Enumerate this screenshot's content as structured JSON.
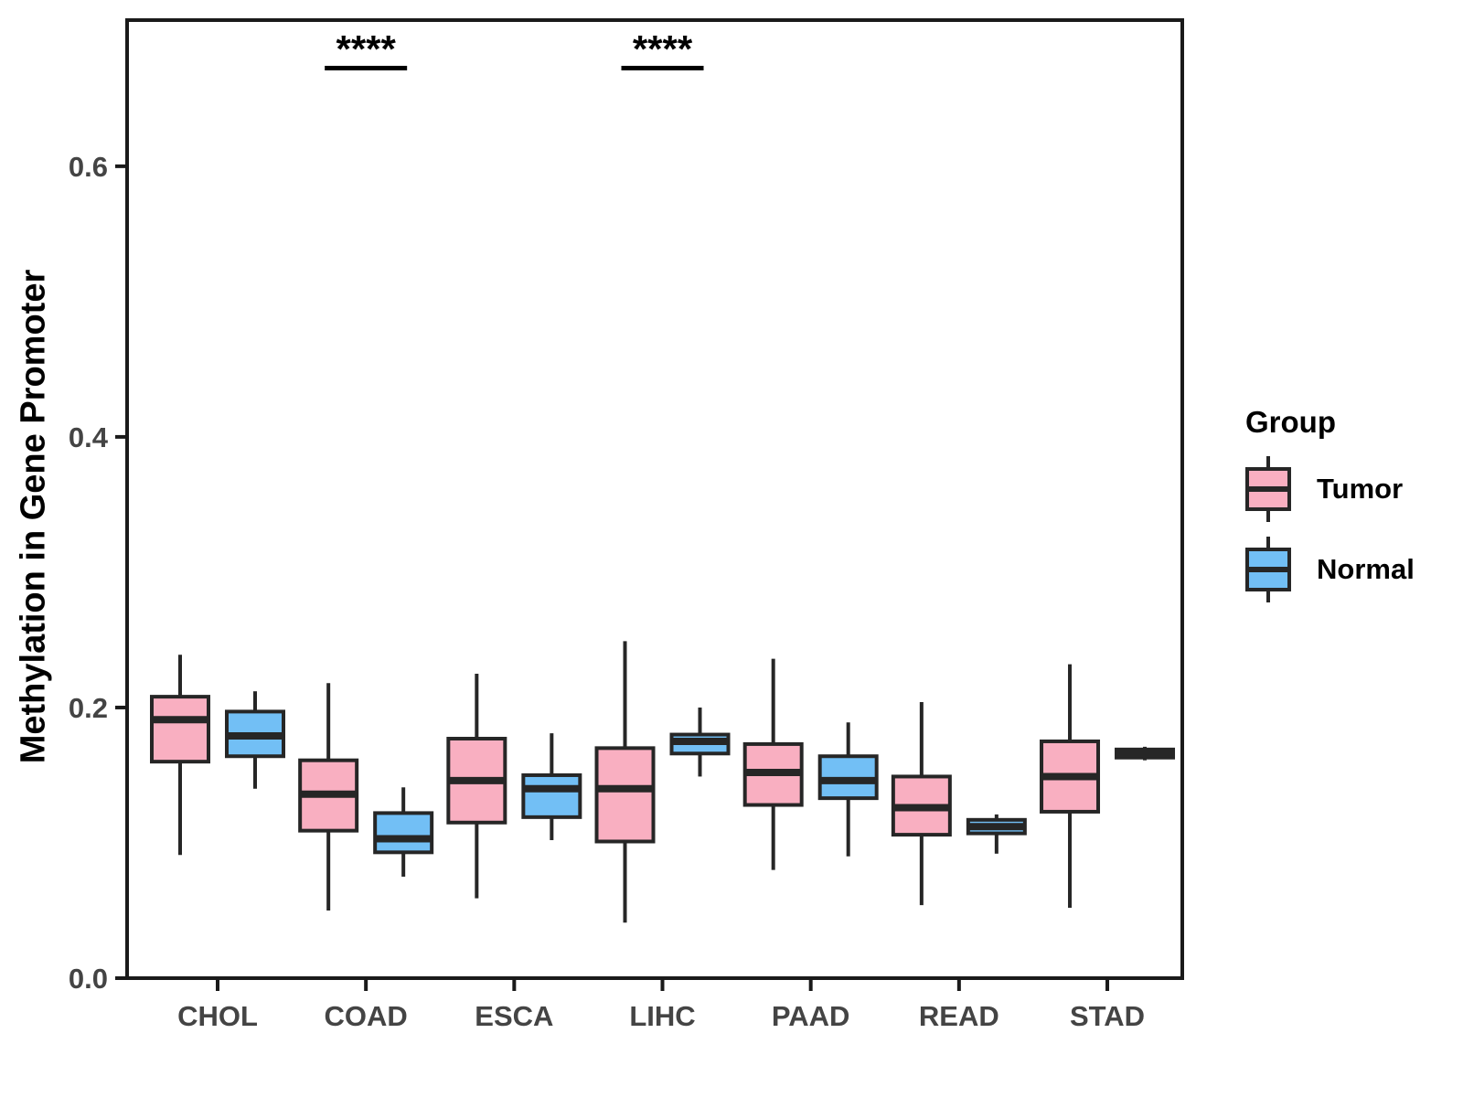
{
  "figure": {
    "ylabel": "Methylation in Gene Promoter"
  },
  "legend": {
    "title": "Group",
    "items": [
      {
        "label": "Tumor",
        "color": "#F9AFC1"
      },
      {
        "label": "Normal",
        "color": "#72BFF5"
      }
    ]
  },
  "chart_data": {
    "type": "boxplot",
    "title": "",
    "xlabel": "",
    "ylabel": "Methylation in Gene Promoter",
    "categories": [
      "CHOL",
      "COAD",
      "ESCA",
      "LIHC",
      "PAAD",
      "READ",
      "STAD"
    ],
    "ylim": [
      0,
      0.708
    ],
    "yticks": [
      {
        "value": 0.0,
        "label": "0.0"
      },
      {
        "value": 0.2,
        "label": "0.2"
      },
      {
        "value": 0.4,
        "label": "0.4"
      },
      {
        "value": 0.6,
        "label": "0.6"
      }
    ],
    "grid": false,
    "legend_position": "right",
    "styles": {
      "box_stroke": "#262626",
      "axis_color": "#1a1a1a",
      "tick_label_color": "#444444",
      "annotation_color": "#000000"
    },
    "series": [
      {
        "name": "Tumor",
        "color": "#F9AFC1",
        "boxes": [
          {
            "category": "CHOL",
            "low": 0.091,
            "q1": 0.16,
            "median": 0.191,
            "q3": 0.208,
            "high": 0.239
          },
          {
            "category": "COAD",
            "low": 0.05,
            "q1": 0.109,
            "median": 0.136,
            "q3": 0.161,
            "high": 0.218
          },
          {
            "category": "ESCA",
            "low": 0.059,
            "q1": 0.115,
            "median": 0.146,
            "q3": 0.177,
            "high": 0.225
          },
          {
            "category": "LIHC",
            "low": 0.041,
            "q1": 0.101,
            "median": 0.14,
            "q3": 0.17,
            "high": 0.249
          },
          {
            "category": "PAAD",
            "low": 0.08,
            "q1": 0.128,
            "median": 0.152,
            "q3": 0.173,
            "high": 0.236
          },
          {
            "category": "READ",
            "low": 0.054,
            "q1": 0.106,
            "median": 0.126,
            "q3": 0.149,
            "high": 0.204
          },
          {
            "category": "STAD",
            "low": 0.052,
            "q1": 0.123,
            "median": 0.149,
            "q3": 0.175,
            "high": 0.232
          }
        ]
      },
      {
        "name": "Normal",
        "color": "#72BFF5",
        "boxes": [
          {
            "category": "CHOL",
            "low": 0.14,
            "q1": 0.164,
            "median": 0.179,
            "q3": 0.197,
            "high": 0.212
          },
          {
            "category": "COAD",
            "low": 0.075,
            "q1": 0.093,
            "median": 0.103,
            "q3": 0.122,
            "high": 0.141
          },
          {
            "category": "ESCA",
            "low": 0.102,
            "q1": 0.119,
            "median": 0.14,
            "q3": 0.15,
            "high": 0.181
          },
          {
            "category": "LIHC",
            "low": 0.149,
            "q1": 0.166,
            "median": 0.175,
            "q3": 0.18,
            "high": 0.2
          },
          {
            "category": "PAAD",
            "low": 0.09,
            "q1": 0.133,
            "median": 0.146,
            "q3": 0.164,
            "high": 0.189
          },
          {
            "category": "READ",
            "low": 0.092,
            "q1": 0.107,
            "median": 0.112,
            "q3": 0.117,
            "high": 0.121
          },
          {
            "category": "STAD",
            "low": 0.161,
            "q1": 0.163,
            "median": 0.166,
            "q3": 0.169,
            "high": 0.171
          }
        ]
      }
    ],
    "annotations": [
      {
        "category": "COAD",
        "label": "****"
      },
      {
        "category": "LIHC",
        "label": "****"
      }
    ]
  }
}
